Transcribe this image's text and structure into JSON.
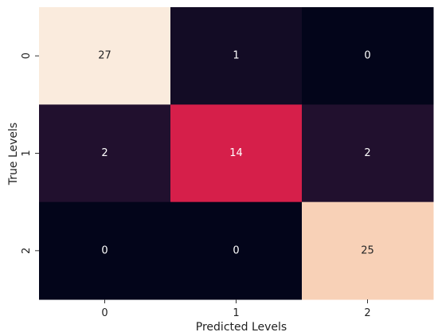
{
  "chart_data": {
    "type": "heatmap",
    "title": "",
    "xlabel": "Predicted Levels",
    "ylabel": "True Levels",
    "x_categories": [
      "0",
      "1",
      "2"
    ],
    "y_categories": [
      "0",
      "1",
      "2"
    ],
    "values": [
      [
        27,
        1,
        0
      ],
      [
        2,
        14,
        2
      ],
      [
        0,
        0,
        25
      ]
    ],
    "value_range": [
      0,
      27
    ],
    "colormap": "rocket",
    "colorbar": false,
    "grid": false
  }
}
